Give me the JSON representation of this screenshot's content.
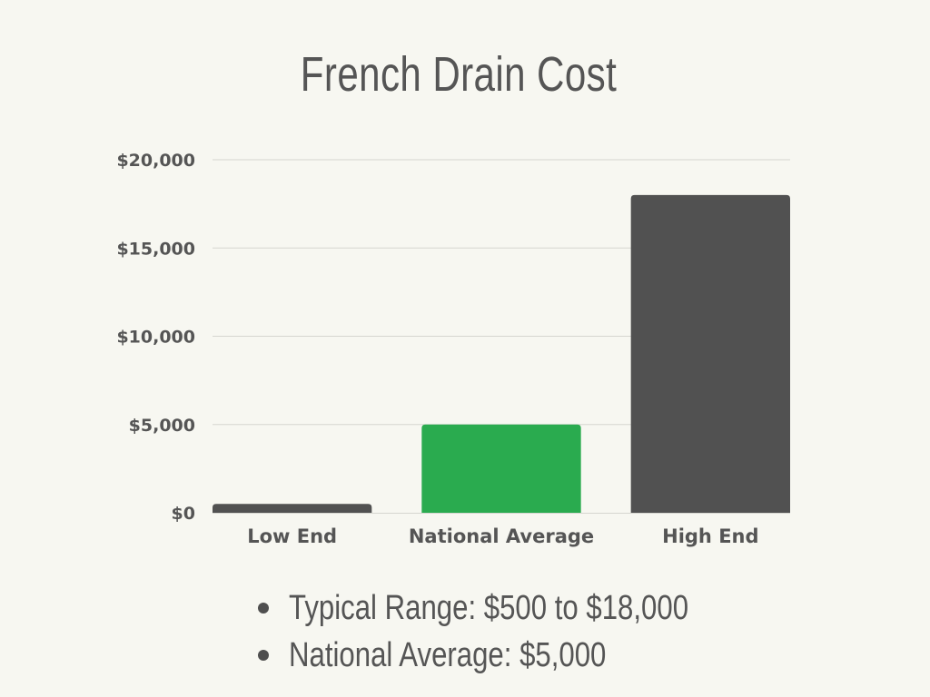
{
  "chart_data": {
    "type": "bar",
    "title": "French Drain Cost",
    "categories": [
      "Low End",
      "National Average",
      "High End"
    ],
    "values": [
      500,
      5000,
      18000
    ],
    "colors": [
      "#515151",
      "#2aab4f",
      "#515151"
    ],
    "ylim": [
      0,
      20000
    ],
    "yticks": [
      0,
      5000,
      10000,
      15000,
      20000
    ],
    "ytick_labels": [
      "$0",
      "$5,000",
      "$10,000",
      "$15,000",
      "$20,000"
    ],
    "grid": true,
    "legend": "none",
    "xlabel": "",
    "ylabel": ""
  },
  "summary": {
    "items": [
      "Typical Range: $500 to $18,000",
      "National Average: $5,000"
    ]
  },
  "colors": {
    "background": "#f7f7f1",
    "text": "#555555",
    "gridline": "#d6d6d0",
    "accent": "#2aab4f"
  }
}
